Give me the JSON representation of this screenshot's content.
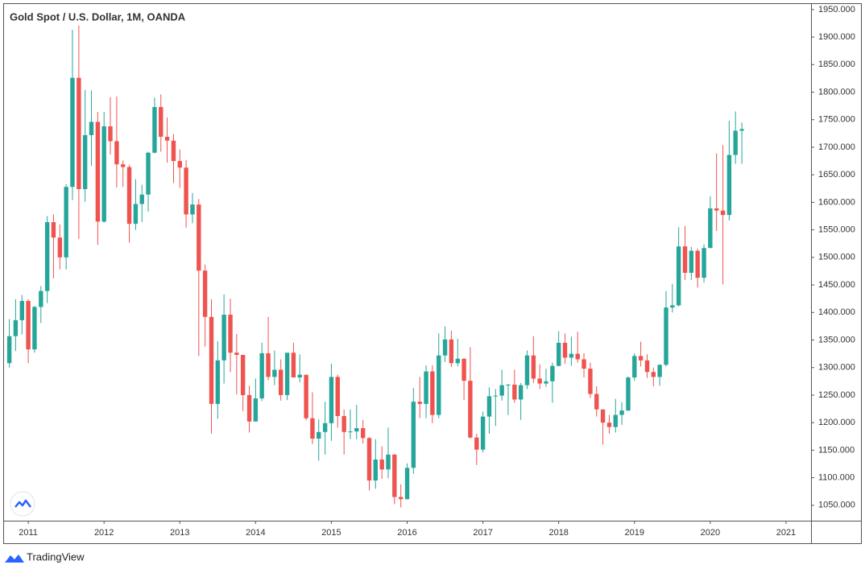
{
  "chart_data": {
    "type": "candlestick",
    "title": "Gold Spot / U.S. Dollar, 1M, OANDA",
    "source": "TradingView",
    "up_color": "#26a69a",
    "down_color": "#ef5350",
    "grid": false,
    "xlim": [
      2010.68,
      2021.33
    ],
    "xticks": [
      2011,
      2012,
      2013,
      2014,
      2015,
      2016,
      2017,
      2018,
      2019,
      2020,
      2021
    ],
    "ylim": [
      1022,
      1960
    ],
    "yticks": [
      {
        "value": 1050,
        "label": "1050.000"
      },
      {
        "value": 1100,
        "label": "1100.000"
      },
      {
        "value": 1150,
        "label": "1150.000"
      },
      {
        "value": 1200,
        "label": "1200.000"
      },
      {
        "value": 1250,
        "label": "1250.000"
      },
      {
        "value": 1300,
        "label": "1300.000"
      },
      {
        "value": 1350,
        "label": "1350.000"
      },
      {
        "value": 1400,
        "label": "1400.000"
      },
      {
        "value": 1450,
        "label": "1450.000"
      },
      {
        "value": 1500,
        "label": "1500.000"
      },
      {
        "value": 1550,
        "label": "1550.000"
      },
      {
        "value": 1600,
        "label": "1600.000"
      },
      {
        "value": 1650,
        "label": "1650.000"
      },
      {
        "value": 1700,
        "label": "1700.000"
      },
      {
        "value": 1750,
        "label": "1750.000"
      },
      {
        "value": 1800,
        "label": "1800.000"
      },
      {
        "value": 1850,
        "label": "1850.000"
      },
      {
        "value": 1900,
        "label": "1900.000"
      },
      {
        "value": 1950,
        "label": "1950.000"
      }
    ],
    "x": [
      2010.75,
      2010.833,
      2010.917,
      2011,
      2011.083,
      2011.167,
      2011.25,
      2011.333,
      2011.417,
      2011.5,
      2011.583,
      2011.667,
      2011.75,
      2011.833,
      2011.917,
      2012,
      2012.083,
      2012.167,
      2012.25,
      2012.333,
      2012.417,
      2012.5,
      2012.583,
      2012.667,
      2012.75,
      2012.833,
      2012.917,
      2013,
      2013.083,
      2013.167,
      2013.25,
      2013.333,
      2013.417,
      2013.5,
      2013.583,
      2013.667,
      2013.75,
      2013.833,
      2013.917,
      2014,
      2014.083,
      2014.167,
      2014.25,
      2014.333,
      2014.417,
      2014.5,
      2014.583,
      2014.667,
      2014.75,
      2014.833,
      2014.917,
      2015,
      2015.083,
      2015.167,
      2015.25,
      2015.333,
      2015.417,
      2015.5,
      2015.583,
      2015.667,
      2015.75,
      2015.833,
      2015.917,
      2016,
      2016.083,
      2016.167,
      2016.25,
      2016.333,
      2016.417,
      2016.5,
      2016.583,
      2016.667,
      2016.75,
      2016.833,
      2016.917,
      2017,
      2017.083,
      2017.167,
      2017.25,
      2017.333,
      2017.417,
      2017.5,
      2017.583,
      2017.667,
      2017.75,
      2017.833,
      2017.917,
      2018,
      2018.083,
      2018.167,
      2018.25,
      2018.333,
      2018.417,
      2018.5,
      2018.583,
      2018.667,
      2018.75,
      2018.833,
      2018.917,
      2019,
      2019.083,
      2019.167,
      2019.25,
      2019.333,
      2019.417,
      2019.5,
      2019.583,
      2019.667,
      2019.75,
      2019.833,
      2019.917,
      2020,
      2020.083,
      2020.167,
      2020.25,
      2020.333,
      2020.417
    ],
    "open": [
      1308,
      1357,
      1386,
      1421,
      1333,
      1410,
      1439,
      1564,
      1536,
      1500,
      1628,
      1826,
      1624,
      1722,
      1746,
      1565,
      1738,
      1711,
      1669,
      1664,
      1561,
      1597,
      1614,
      1690,
      1773,
      1719,
      1712,
      1675,
      1663,
      1578,
      1596,
      1476,
      1392,
      1234,
      1313,
      1396,
      1327,
      1323,
      1250,
      1202,
      1244,
      1326,
      1283,
      1296,
      1250,
      1327,
      1282,
      1287,
      1208,
      1171,
      1183,
      1199,
      1283,
      1212,
      1183,
      1184,
      1190,
      1172,
      1095,
      1133,
      1115,
      1142,
      1065,
      1061,
      1118,
      1238,
      1234,
      1293,
      1214,
      1322,
      1351,
      1308,
      1316,
      1276,
      1173,
      1151,
      1211,
      1248,
      1249,
      1268,
      1269,
      1242,
      1268,
      1322,
      1280,
      1271,
      1275,
      1303,
      1345,
      1318,
      1325,
      1315,
      1298,
      1252,
      1224,
      1200,
      1192,
      1214,
      1222,
      1282,
      1321,
      1313,
      1292,
      1283,
      1305,
      1409,
      1413,
      1520,
      1472,
      1512,
      1463,
      1517,
      1589,
      1585,
      1577,
      1686,
      1730
    ],
    "high": [
      1388,
      1424,
      1432,
      1424,
      1412,
      1448,
      1575,
      1578,
      1560,
      1633,
      1913,
      1921,
      1804,
      1803,
      1764,
      1764,
      1791,
      1792,
      1676,
      1668,
      1642,
      1632,
      1692,
      1790,
      1796,
      1754,
      1724,
      1696,
      1677,
      1617,
      1606,
      1487,
      1424,
      1348,
      1433,
      1425,
      1361,
      1323,
      1267,
      1280,
      1345,
      1392,
      1331,
      1315,
      1326,
      1345,
      1324,
      1287,
      1255,
      1206,
      1238,
      1307,
      1287,
      1224,
      1224,
      1232,
      1205,
      1174,
      1170,
      1157,
      1191,
      1143,
      1088,
      1126,
      1263,
      1283,
      1304,
      1304,
      1362,
      1375,
      1367,
      1352,
      1317,
      1337,
      1180,
      1220,
      1264,
      1261,
      1296,
      1270,
      1296,
      1272,
      1331,
      1357,
      1306,
      1298,
      1309,
      1366,
      1362,
      1356,
      1365,
      1326,
      1309,
      1266,
      1224,
      1214,
      1243,
      1237,
      1284,
      1326,
      1347,
      1324,
      1300,
      1306,
      1439,
      1452,
      1555,
      1557,
      1519,
      1516,
      1524,
      1611,
      1689,
      1704,
      1748,
      1765,
      1745
    ],
    "low": [
      1300,
      1330,
      1360,
      1308,
      1327,
      1381,
      1417,
      1462,
      1478,
      1478,
      1604,
      1534,
      1601,
      1666,
      1523,
      1563,
      1687,
      1627,
      1628,
      1527,
      1550,
      1564,
      1583,
      1689,
      1692,
      1672,
      1635,
      1626,
      1554,
      1562,
      1321,
      1338,
      1180,
      1207,
      1271,
      1292,
      1251,
      1221,
      1182,
      1202,
      1239,
      1277,
      1268,
      1240,
      1241,
      1282,
      1273,
      1204,
      1161,
      1131,
      1142,
      1167,
      1191,
      1142,
      1170,
      1170,
      1162,
      1077,
      1080,
      1098,
      1099,
      1052,
      1046,
      1061,
      1107,
      1208,
      1208,
      1199,
      1208,
      1310,
      1301,
      1302,
      1241,
      1171,
      1123,
      1146,
      1180,
      1194,
      1240,
      1214,
      1236,
      1205,
      1261,
      1272,
      1261,
      1265,
      1236,
      1302,
      1307,
      1303,
      1309,
      1282,
      1245,
      1211,
      1160,
      1180,
      1182,
      1196,
      1221,
      1276,
      1302,
      1281,
      1266,
      1267,
      1302,
      1400,
      1411,
      1459,
      1459,
      1445,
      1454,
      1517,
      1548,
      1451,
      1567,
      1670,
      1670
    ],
    "close": [
      1357,
      1386,
      1421,
      1333,
      1410,
      1439,
      1564,
      1536,
      1500,
      1628,
      1826,
      1624,
      1722,
      1746,
      1565,
      1738,
      1711,
      1669,
      1664,
      1561,
      1597,
      1614,
      1690,
      1773,
      1719,
      1712,
      1675,
      1663,
      1578,
      1596,
      1476,
      1392,
      1234,
      1313,
      1396,
      1327,
      1323,
      1250,
      1202,
      1244,
      1326,
      1283,
      1296,
      1250,
      1327,
      1282,
      1287,
      1208,
      1171,
      1183,
      1199,
      1283,
      1212,
      1183,
      1184,
      1190,
      1172,
      1095,
      1133,
      1115,
      1142,
      1065,
      1061,
      1118,
      1238,
      1234,
      1293,
      1214,
      1322,
      1351,
      1308,
      1316,
      1276,
      1173,
      1151,
      1211,
      1248,
      1249,
      1268,
      1269,
      1242,
      1268,
      1322,
      1280,
      1271,
      1275,
      1303,
      1345,
      1318,
      1325,
      1315,
      1298,
      1252,
      1224,
      1200,
      1192,
      1214,
      1222,
      1282,
      1321,
      1313,
      1292,
      1283,
      1305,
      1409,
      1413,
      1520,
      1472,
      1512,
      1463,
      1517,
      1589,
      1585,
      1577,
      1686,
      1730,
      1733
    ]
  }
}
